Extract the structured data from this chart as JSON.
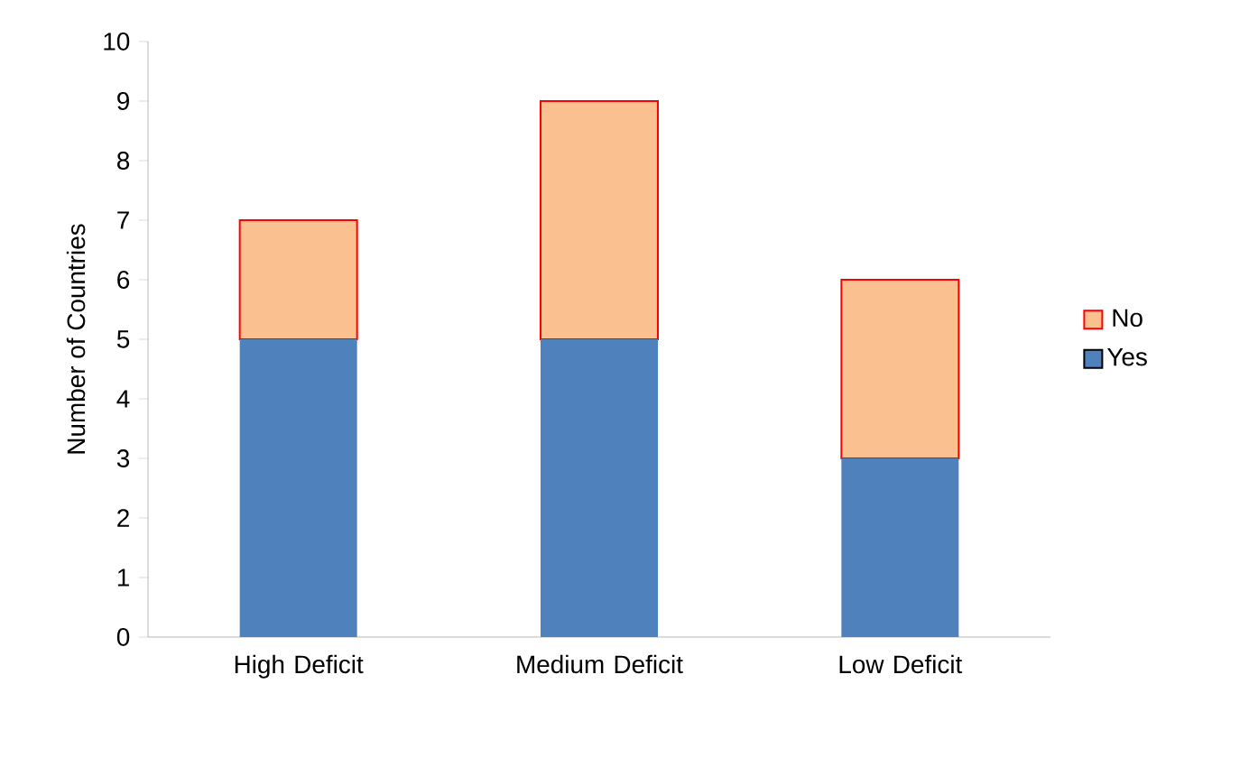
{
  "chart_data": {
    "type": "bar",
    "stacked": true,
    "ylabel": "Number of Countries",
    "categories": [
      "High Deficit",
      "Medium Deficit",
      "Low Deficit"
    ],
    "series": [
      {
        "name": "Yes",
        "color": "#4f81bd",
        "values": [
          5,
          5,
          3
        ]
      },
      {
        "name": "No",
        "color": "#fac090",
        "values": [
          2,
          4,
          3
        ]
      }
    ],
    "ylim": [
      0,
      10
    ],
    "yticks": [
      0,
      1,
      2,
      3,
      4,
      5,
      6,
      7,
      8,
      9,
      10
    ],
    "legend": "right",
    "grid": false
  }
}
